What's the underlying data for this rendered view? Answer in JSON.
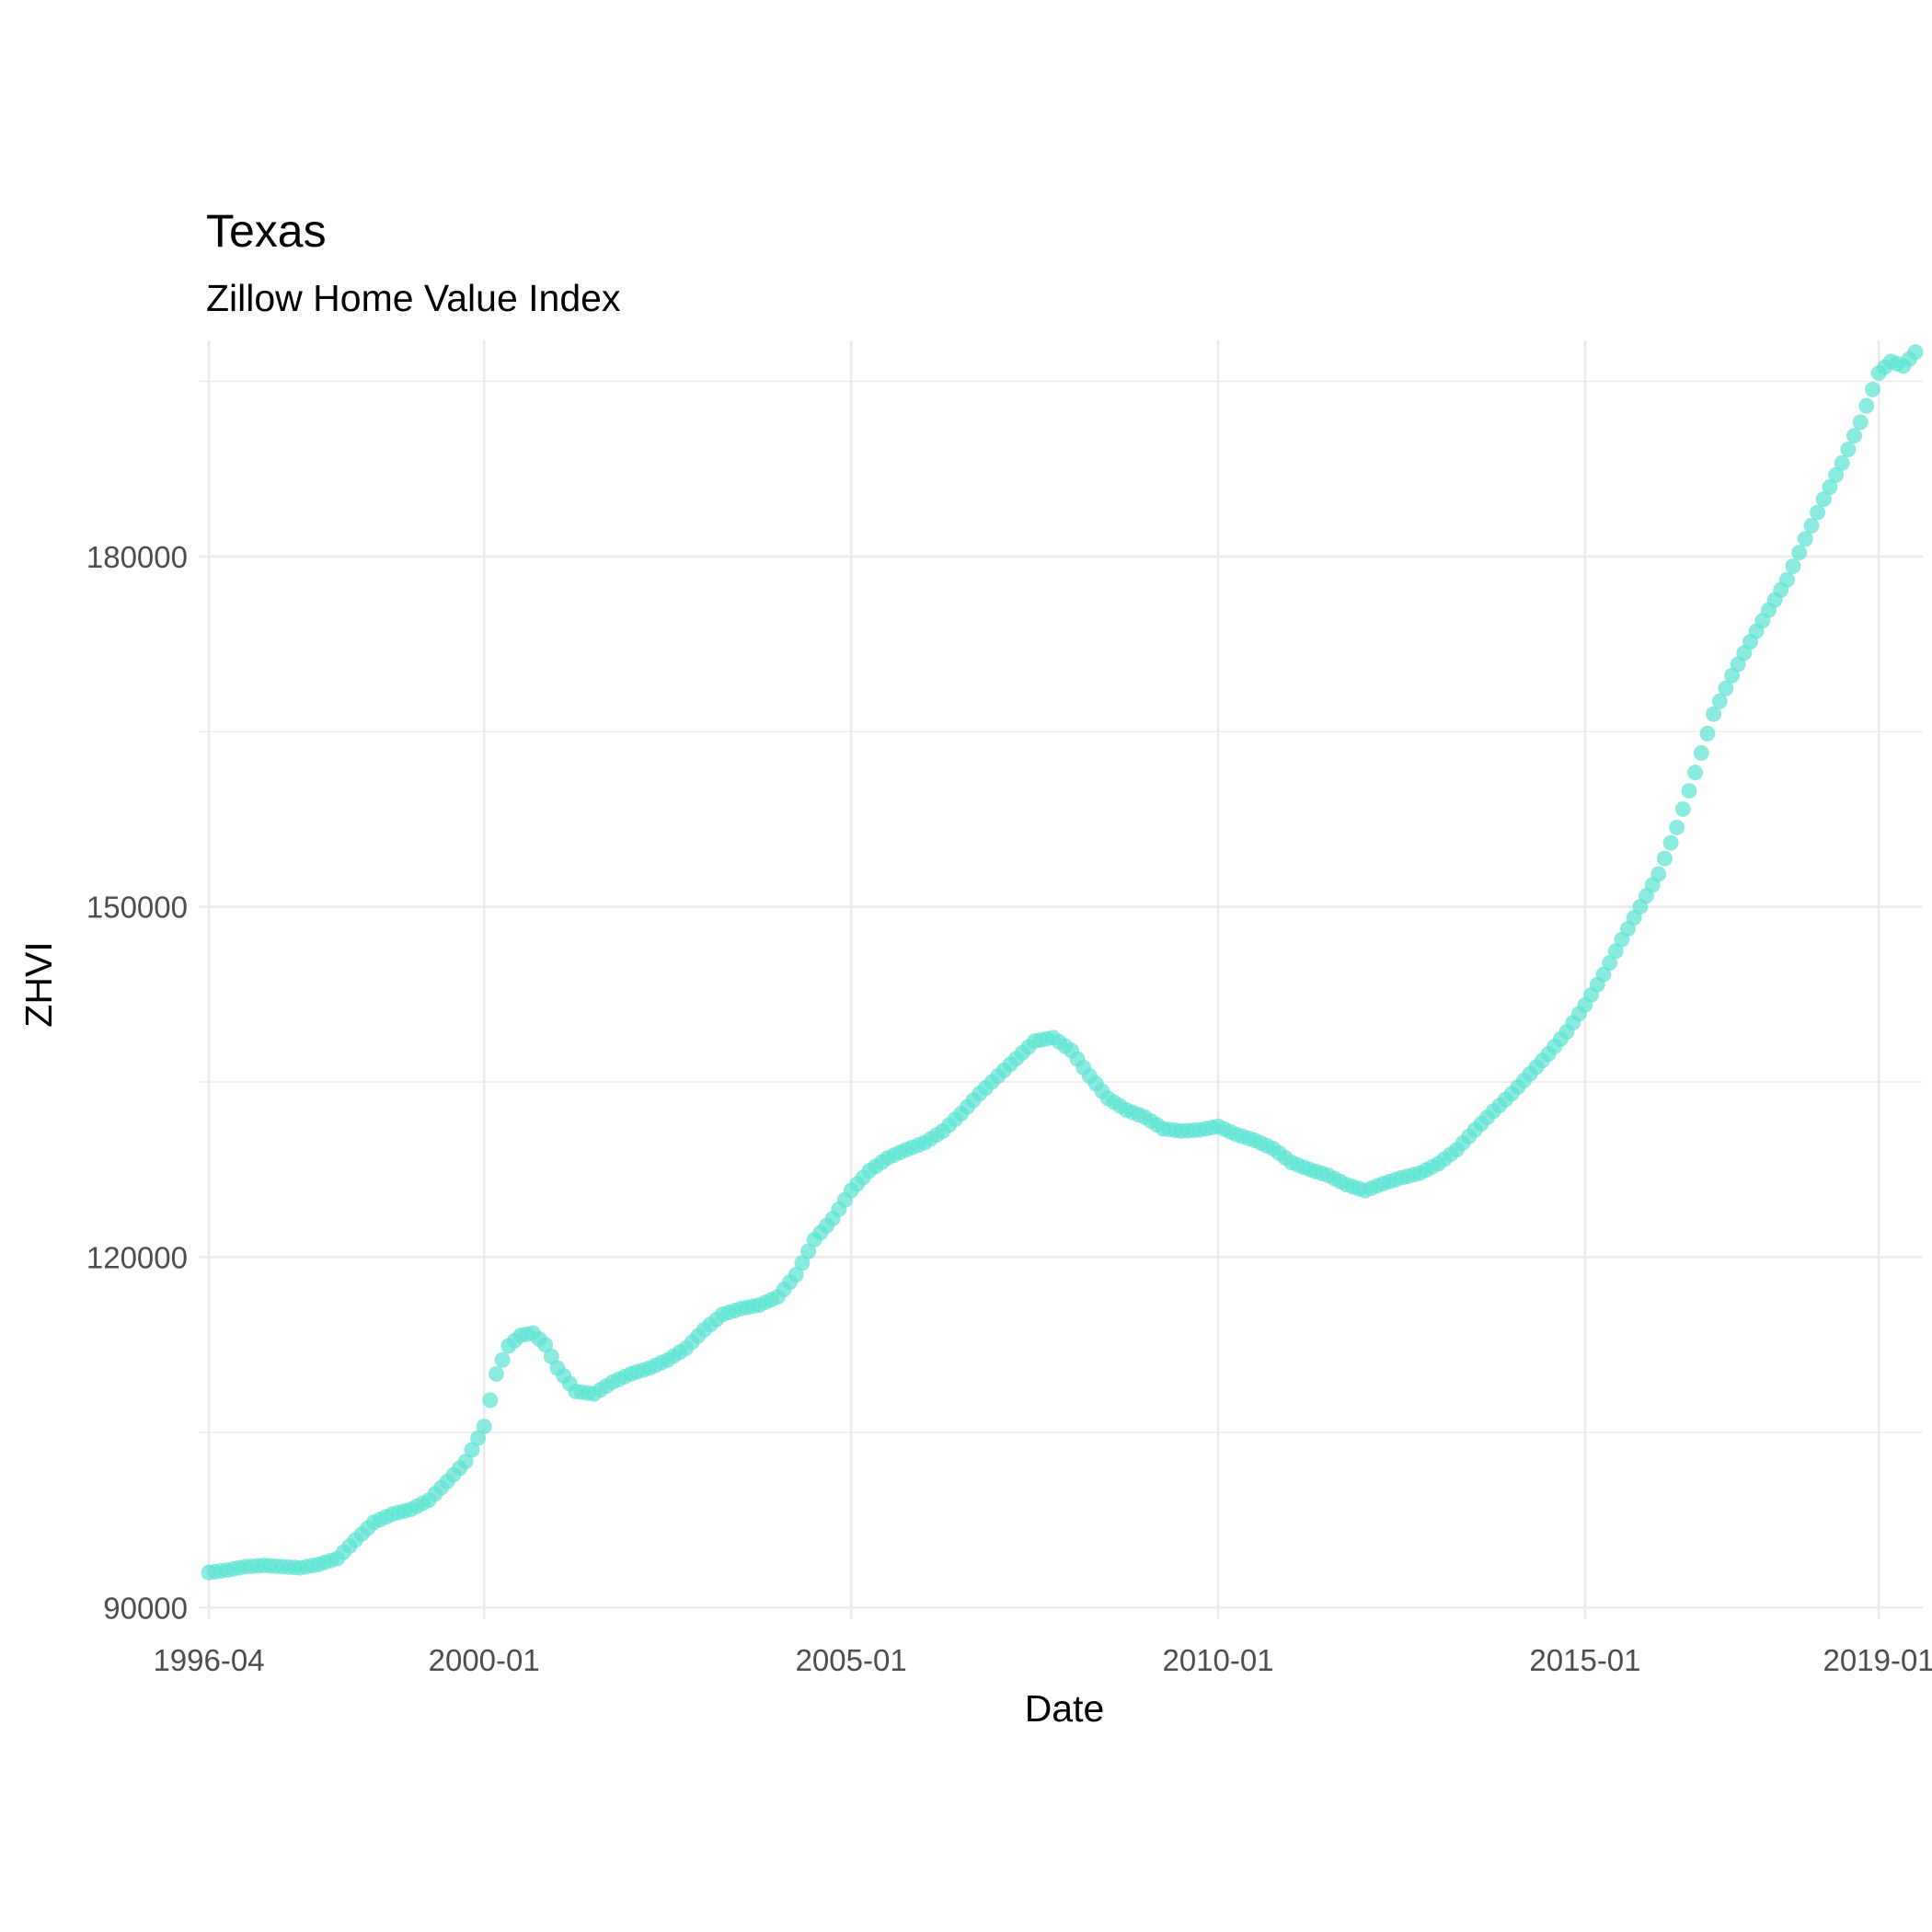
{
  "chart_data": {
    "type": "scatter",
    "title": "Texas",
    "subtitle": "Zillow Home Value Index",
    "xlabel": "Date",
    "ylabel": "ZHVI",
    "x_ticks": [
      "1996-04",
      "2000-01",
      "2005-01",
      "2010-01",
      "2015-01",
      "2019-01"
    ],
    "y_ticks": [
      90000,
      120000,
      150000,
      180000
    ],
    "ylim": [
      89000,
      198500
    ],
    "xlim": [
      "1996-04",
      "2019-07"
    ],
    "grid": true,
    "point_color": "#5ee3d3",
    "series": [
      {
        "points": [
          [
            "1996-04",
            93000
          ],
          [
            "1996-07",
            93200
          ],
          [
            "1996-10",
            93500
          ],
          [
            "1997-01",
            93600
          ],
          [
            "1997-04",
            93500
          ],
          [
            "1997-07",
            93400
          ],
          [
            "1997-10",
            93700
          ],
          [
            "1998-01",
            94200
          ],
          [
            "1998-04",
            95800
          ],
          [
            "1998-07",
            97300
          ],
          [
            "1998-10",
            98000
          ],
          [
            "1999-01",
            98400
          ],
          [
            "1999-04",
            99200
          ],
          [
            "1999-07",
            100800
          ],
          [
            "1999-10",
            102500
          ],
          [
            "2000-01",
            105500
          ],
          [
            "2000-03",
            110000
          ],
          [
            "2000-05",
            112400
          ],
          [
            "2000-07",
            113300
          ],
          [
            "2000-09",
            113500
          ],
          [
            "2000-11",
            112500
          ],
          [
            "2001-01",
            110500
          ],
          [
            "2001-04",
            108500
          ],
          [
            "2001-07",
            108300
          ],
          [
            "2001-10",
            109300
          ],
          [
            "2002-01",
            110000
          ],
          [
            "2002-04",
            110500
          ],
          [
            "2002-07",
            111200
          ],
          [
            "2002-10",
            112200
          ],
          [
            "2003-01",
            113800
          ],
          [
            "2003-04",
            115100
          ],
          [
            "2003-07",
            115600
          ],
          [
            "2003-10",
            115900
          ],
          [
            "2004-01",
            116600
          ],
          [
            "2004-04",
            118500
          ],
          [
            "2004-07",
            121500
          ],
          [
            "2004-10",
            123300
          ],
          [
            "2005-01",
            125700
          ],
          [
            "2005-04",
            127400
          ],
          [
            "2005-07",
            128500
          ],
          [
            "2005-10",
            129200
          ],
          [
            "2006-01",
            129800
          ],
          [
            "2006-04",
            130800
          ],
          [
            "2006-07",
            132300
          ],
          [
            "2006-10",
            134000
          ],
          [
            "2007-01",
            135500
          ],
          [
            "2007-04",
            137000
          ],
          [
            "2007-07",
            138500
          ],
          [
            "2007-10",
            138800
          ],
          [
            "2008-01",
            137700
          ],
          [
            "2008-04",
            135500
          ],
          [
            "2008-07",
            133600
          ],
          [
            "2008-10",
            132600
          ],
          [
            "2009-01",
            132000
          ],
          [
            "2009-04",
            131000
          ],
          [
            "2009-07",
            130800
          ],
          [
            "2009-10",
            130900
          ],
          [
            "2010-01",
            131200
          ],
          [
            "2010-04",
            130500
          ],
          [
            "2010-07",
            130000
          ],
          [
            "2010-10",
            129300
          ],
          [
            "2011-01",
            128100
          ],
          [
            "2011-04",
            127500
          ],
          [
            "2011-07",
            127000
          ],
          [
            "2011-10",
            126200
          ],
          [
            "2012-01",
            125700
          ],
          [
            "2012-04",
            126300
          ],
          [
            "2012-07",
            126800
          ],
          [
            "2012-10",
            127200
          ],
          [
            "2013-01",
            128000
          ],
          [
            "2013-04",
            129200
          ],
          [
            "2013-07",
            130900
          ],
          [
            "2013-10",
            132500
          ],
          [
            "2014-01",
            134000
          ],
          [
            "2014-04",
            135700
          ],
          [
            "2014-07",
            137400
          ],
          [
            "2014-10",
            139300
          ],
          [
            "2015-01",
            141600
          ],
          [
            "2015-04",
            144200
          ],
          [
            "2015-07",
            147200
          ],
          [
            "2015-10",
            150000
          ],
          [
            "2016-01",
            152800
          ],
          [
            "2016-04",
            156800
          ],
          [
            "2016-07",
            161500
          ],
          [
            "2016-10",
            166500
          ],
          [
            "2017-01",
            169800
          ],
          [
            "2017-04",
            172700
          ],
          [
            "2017-07",
            175400
          ],
          [
            "2017-10",
            178000
          ],
          [
            "2018-01",
            181500
          ],
          [
            "2018-04",
            184900
          ],
          [
            "2018-07",
            188000
          ],
          [
            "2018-10",
            191500
          ],
          [
            "2019-01",
            195700
          ],
          [
            "2019-03",
            196700
          ],
          [
            "2019-05",
            196300
          ],
          [
            "2019-07",
            197500
          ]
        ]
      }
    ]
  }
}
